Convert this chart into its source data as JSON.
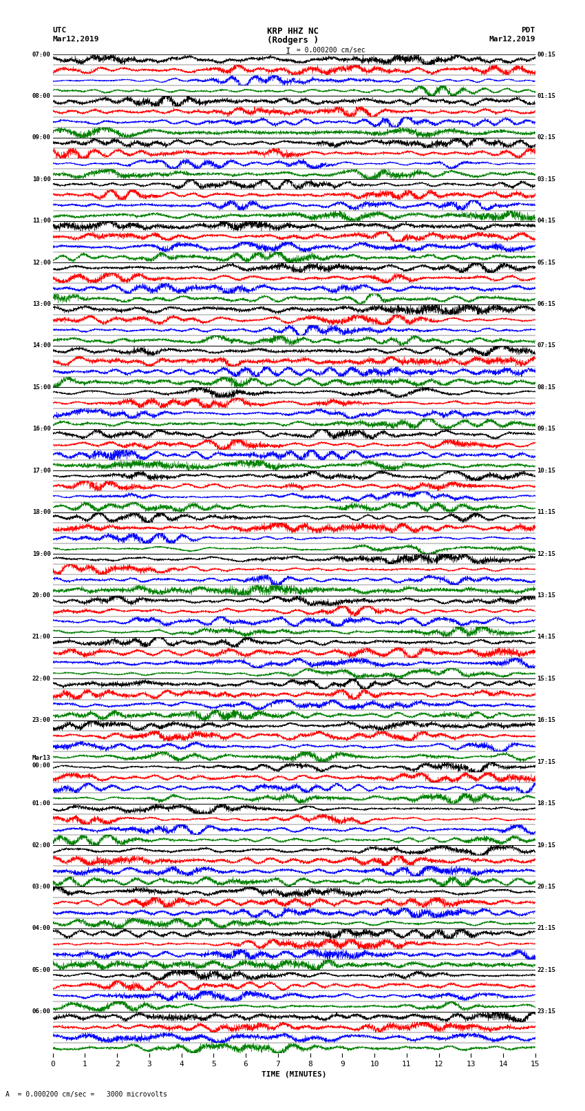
{
  "title_line1": "KRP HHZ NC",
  "title_line2": "(Rodgers )",
  "scale_label": "= 0.000200 cm/sec",
  "bottom_label": "A  = 0.000200 cm/sec =   3000 microvolts",
  "xlabel": "TIME (MINUTES)",
  "utc_label": "UTC",
  "utc_date": "Mar12,2019",
  "pdt_label": "PDT",
  "pdt_date": "Mar12,2019",
  "left_times": [
    "07:00",
    "08:00",
    "09:00",
    "10:00",
    "11:00",
    "12:00",
    "13:00",
    "14:00",
    "15:00",
    "16:00",
    "17:00",
    "18:00",
    "19:00",
    "20:00",
    "21:00",
    "22:00",
    "23:00",
    "Mar13\n00:00",
    "01:00",
    "02:00",
    "03:00",
    "04:00",
    "05:00",
    "06:00"
  ],
  "right_times": [
    "00:15",
    "01:15",
    "02:15",
    "03:15",
    "04:15",
    "05:15",
    "06:15",
    "07:15",
    "08:15",
    "09:15",
    "10:15",
    "11:15",
    "12:15",
    "13:15",
    "14:15",
    "15:15",
    "16:15",
    "17:15",
    "18:15",
    "19:15",
    "20:15",
    "21:15",
    "22:15",
    "23:15"
  ],
  "n_rows": 24,
  "n_traces_per_row": 4,
  "colors": [
    "black",
    "red",
    "blue",
    "green"
  ],
  "fig_width": 8.5,
  "fig_height": 16.13,
  "bg_color": "white",
  "noise_seed": 42,
  "x_ticks": [
    0,
    1,
    2,
    3,
    4,
    5,
    6,
    7,
    8,
    9,
    10,
    11,
    12,
    13,
    14,
    15
  ],
  "x_min": 0,
  "x_max": 15
}
